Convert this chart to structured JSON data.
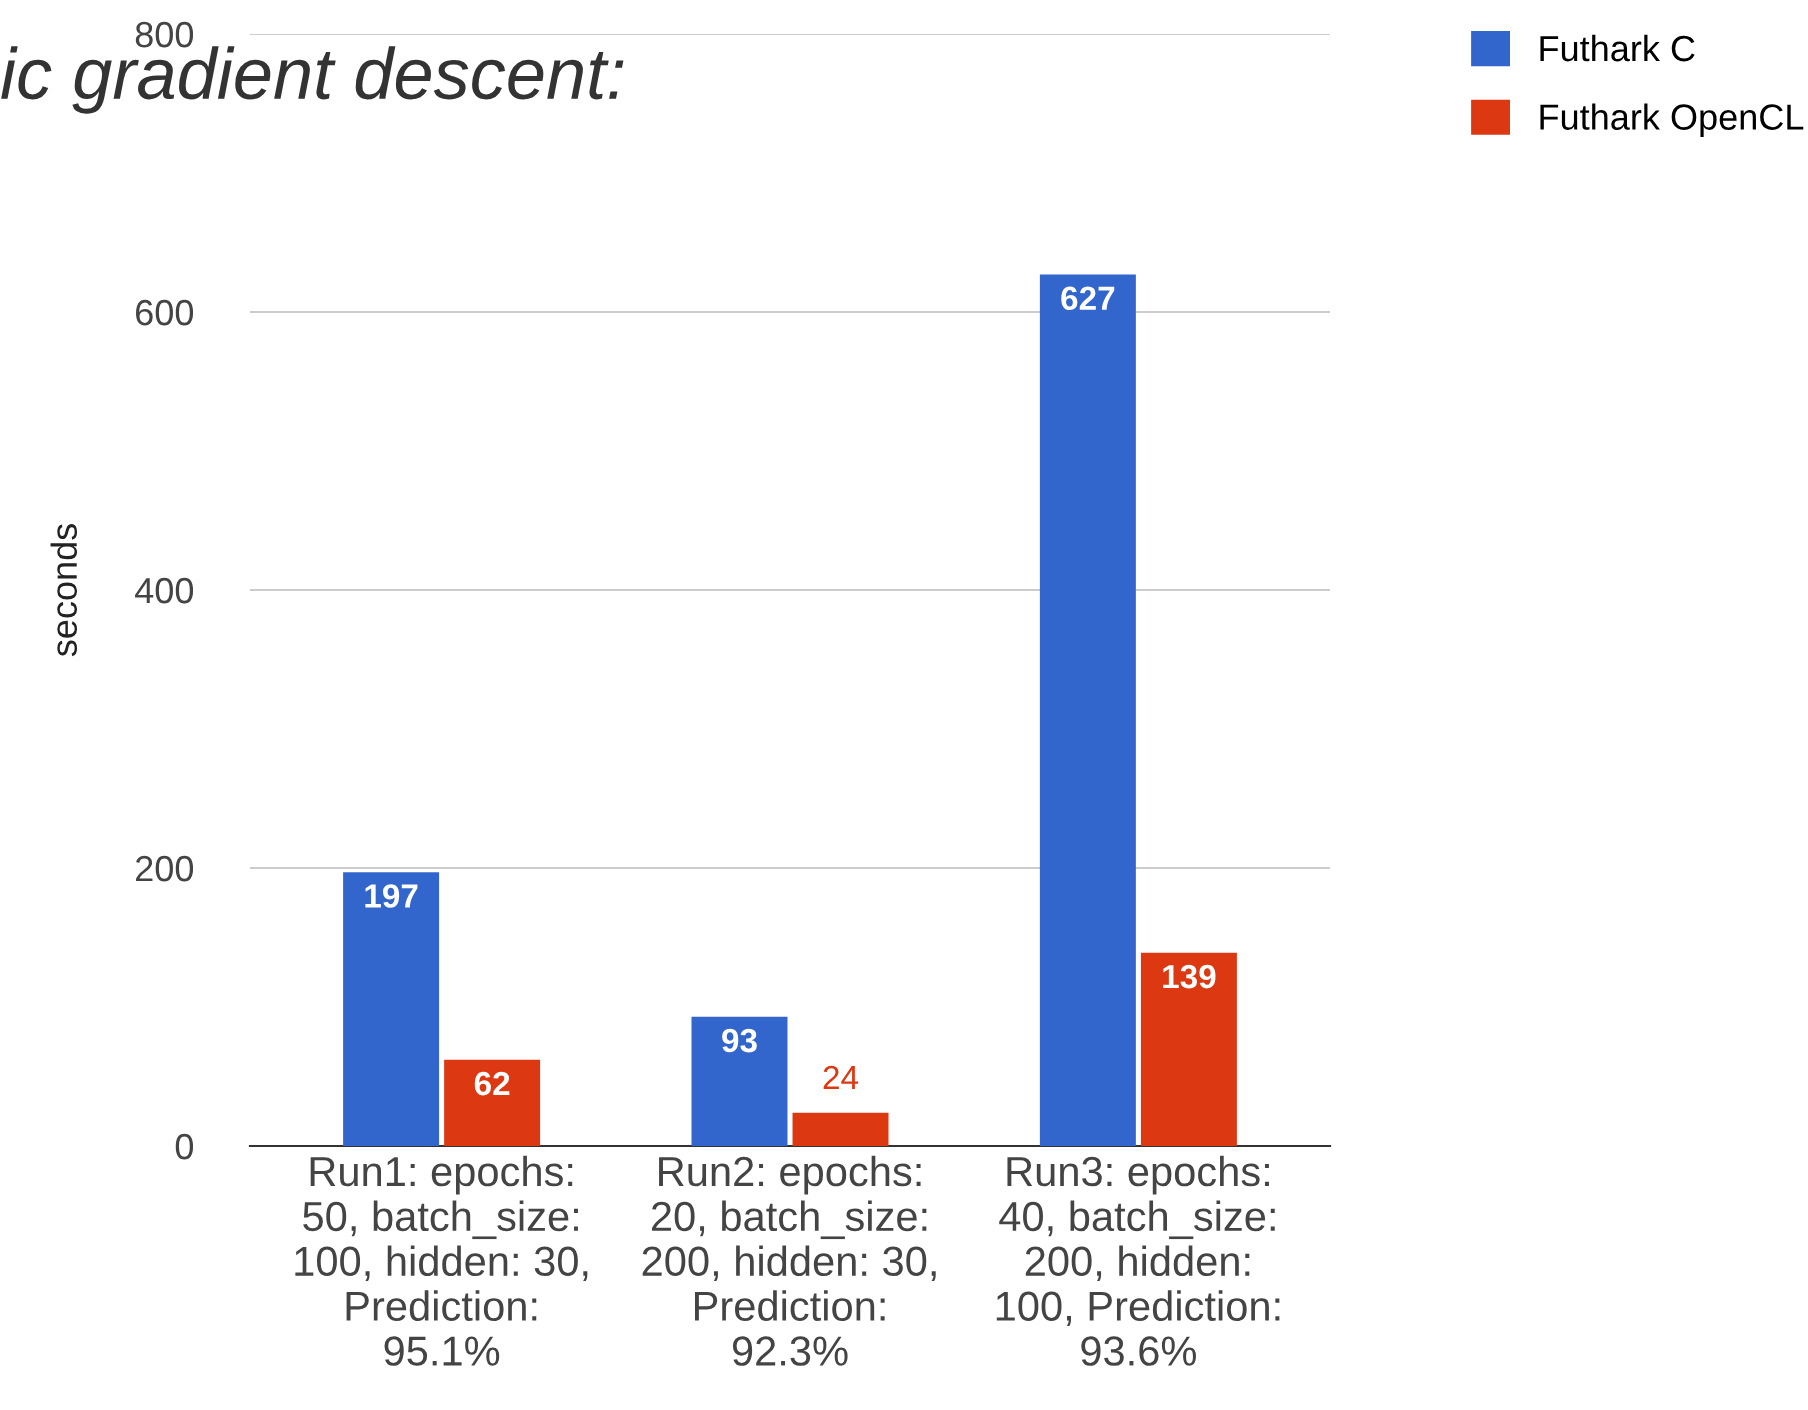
{
  "chart_data": {
    "type": "bar",
    "title": "ic gradient descent:",
    "ylabel": "seconds",
    "categories": [
      "Run1: epochs:\n50, batch_size:\n100, hidden: 30,\nPrediction:\n95.1%",
      "Run2: epochs:\n20, batch_size:\n200, hidden: 30,\nPrediction:\n92.3%",
      "Run3: epochs:\n40, batch_size:\n200, hidden:\n100, Prediction:\n93.6%"
    ],
    "series": [
      {
        "name": "Futhark C",
        "color": "#3366cc",
        "values": [
          197,
          93,
          627
        ]
      },
      {
        "name": "Futhark OpenCL",
        "color": "#dc3912",
        "values": [
          62,
          24,
          139
        ]
      }
    ],
    "ylim": [
      0,
      800
    ],
    "yticks": [
      0,
      200,
      400,
      600,
      800
    ],
    "grid": "y",
    "legend": "top right",
    "data_labels": true
  }
}
